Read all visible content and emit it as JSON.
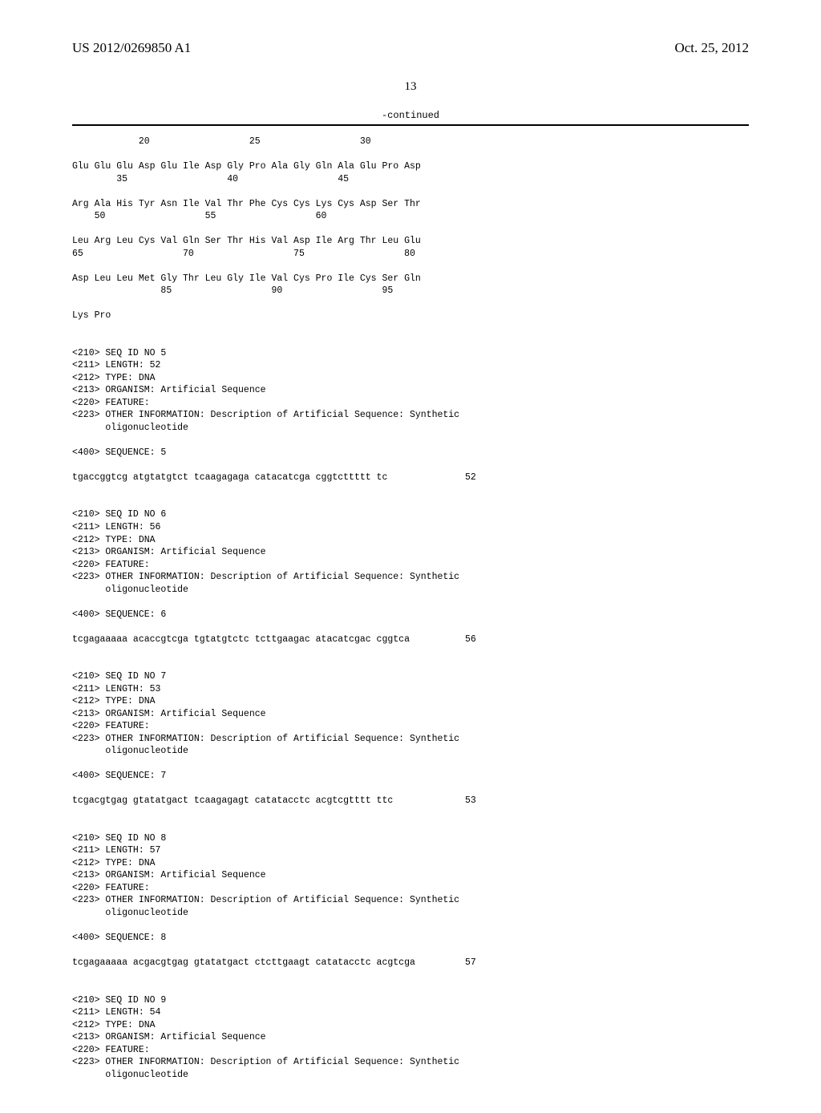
{
  "header": {
    "pub_number": "US 2012/0269850 A1",
    "pub_date": "Oct. 25, 2012"
  },
  "page_number": "13",
  "continued_label": "-continued",
  "sequence_text": "            20                  25                  30\n\nGlu Glu Glu Asp Glu Ile Asp Gly Pro Ala Gly Gln Ala Glu Pro Asp\n        35                  40                  45\n\nArg Ala His Tyr Asn Ile Val Thr Phe Cys Cys Lys Cys Asp Ser Thr\n    50                  55                  60\n\nLeu Arg Leu Cys Val Gln Ser Thr His Val Asp Ile Arg Thr Leu Glu\n65                  70                  75                  80\n\nAsp Leu Leu Met Gly Thr Leu Gly Ile Val Cys Pro Ile Cys Ser Gln\n                85                  90                  95\n\nLys Pro\n\n\n<210> SEQ ID NO 5\n<211> LENGTH: 52\n<212> TYPE: DNA\n<213> ORGANISM: Artificial Sequence\n<220> FEATURE:\n<223> OTHER INFORMATION: Description of Artificial Sequence: Synthetic\n      oligonucleotide\n\n<400> SEQUENCE: 5\n\ntgaccggtcg atgtatgtct tcaagagaga catacatcga cggtcttttt tc              52\n\n\n<210> SEQ ID NO 6\n<211> LENGTH: 56\n<212> TYPE: DNA\n<213> ORGANISM: Artificial Sequence\n<220> FEATURE:\n<223> OTHER INFORMATION: Description of Artificial Sequence: Synthetic\n      oligonucleotide\n\n<400> SEQUENCE: 6\n\ntcgagaaaaa acaccgtcga tgtatgtctc tcttgaagac atacatcgac cggtca          56\n\n\n<210> SEQ ID NO 7\n<211> LENGTH: 53\n<212> TYPE: DNA\n<213> ORGANISM: Artificial Sequence\n<220> FEATURE:\n<223> OTHER INFORMATION: Description of Artificial Sequence: Synthetic\n      oligonucleotide\n\n<400> SEQUENCE: 7\n\ntcgacgtgag gtatatgact tcaagagagt catatacctc acgtcgtttt ttc             53\n\n\n<210> SEQ ID NO 8\n<211> LENGTH: 57\n<212> TYPE: DNA\n<213> ORGANISM: Artificial Sequence\n<220> FEATURE:\n<223> OTHER INFORMATION: Description of Artificial Sequence: Synthetic\n      oligonucleotide\n\n<400> SEQUENCE: 8\n\ntcgagaaaaa acgacgtgag gtatatgact ctcttgaagt catatacctc acgtcga         57\n\n\n<210> SEQ ID NO 9\n<211> LENGTH: 54\n<212> TYPE: DNA\n<213> ORGANISM: Artificial Sequence\n<220> FEATURE:\n<223> OTHER INFORMATION: Description of Artificial Sequence: Synthetic\n      oligonucleotide"
}
